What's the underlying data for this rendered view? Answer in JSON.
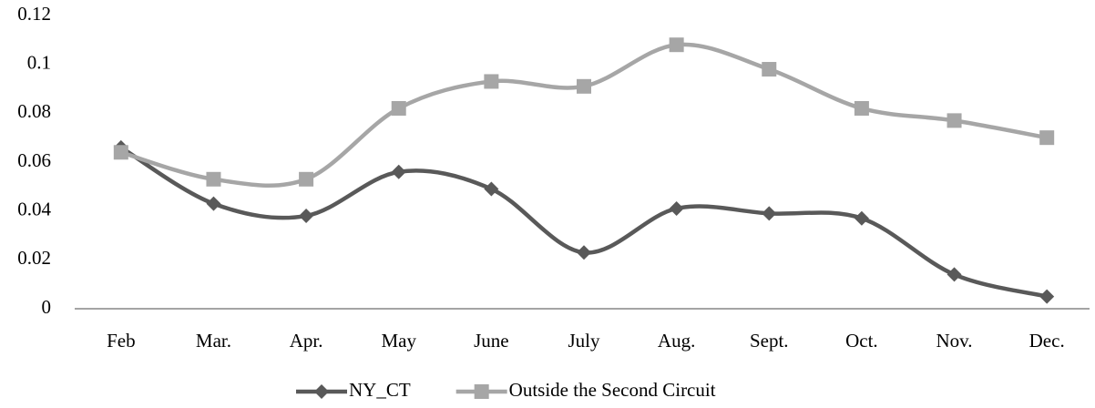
{
  "chart_data": {
    "type": "line",
    "categories": [
      "Feb",
      "Mar.",
      "Apr.",
      "May",
      "June",
      "July",
      "Aug.",
      "Sept.",
      "Oct.",
      "Nov.",
      "Dec."
    ],
    "series": [
      {
        "name": "NY_CT",
        "color": "#595959",
        "marker": "diamond",
        "values": [
          0.066,
          0.043,
          0.038,
          0.056,
          0.049,
          0.023,
          0.041,
          0.039,
          0.037,
          0.014,
          0.005
        ]
      },
      {
        "name": "Outside the Second Circuit",
        "color": "#a6a6a6",
        "marker": "square",
        "values": [
          0.064,
          0.053,
          0.053,
          0.082,
          0.093,
          0.091,
          0.108,
          0.098,
          0.082,
          0.077,
          0.07
        ]
      }
    ],
    "ylim": [
      0,
      0.12
    ],
    "yticks": [
      0,
      0.02,
      0.04,
      0.06,
      0.08,
      0.1,
      0.12
    ],
    "grid": false,
    "legend": "bottom",
    "smooth": true
  }
}
